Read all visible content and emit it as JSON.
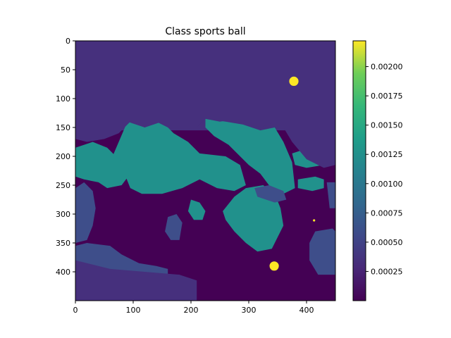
{
  "chart_data": {
    "type": "heatmap",
    "title": "Class sports ball",
    "xlabel": "",
    "ylabel": "",
    "x_ticks": [
      0,
      100,
      200,
      300,
      400
    ],
    "y_ticks": [
      0,
      50,
      100,
      150,
      200,
      250,
      300,
      350,
      400
    ],
    "x_range": [
      0,
      450
    ],
    "y_range": [
      0,
      450
    ],
    "y_inverted": true,
    "grid": false,
    "colormap": "viridis",
    "colorbar": {
      "range": [
        0.0,
        0.00222
      ],
      "ticks": [
        0.00025,
        0.0005,
        0.00075,
        0.001,
        0.00125,
        0.0015,
        0.00175,
        0.002
      ],
      "tick_labels": [
        "0.00025",
        "0.00050",
        "0.00075",
        "0.00100",
        "0.00125",
        "0.00150",
        "0.00175",
        "0.00200"
      ]
    },
    "levels": [
      {
        "level": "background",
        "value": 0.00018,
        "color": "#46307d"
      },
      {
        "level": "very-low",
        "value": 2e-05,
        "color": "#440154"
      },
      {
        "level": "low",
        "value": 0.00055,
        "color": "#3e4e8a"
      },
      {
        "level": "mid",
        "value": 0.0012,
        "color": "#21918c"
      },
      {
        "level": "peak",
        "value": 0.0022,
        "color": "#fde725"
      }
    ],
    "regions": [
      {
        "level": "very-low",
        "points": [
          [
            0,
            155
          ],
          [
            450,
            155
          ],
          [
            450,
            450
          ],
          [
            0,
            450
          ]
        ]
      },
      {
        "level": "mid",
        "points": [
          [
            60,
            210
          ],
          [
            90,
            140
          ],
          [
            120,
            150
          ],
          [
            150,
            140
          ],
          [
            170,
            160
          ],
          [
            195,
            175
          ],
          [
            215,
            195
          ],
          [
            260,
            200
          ],
          [
            285,
            215
          ],
          [
            295,
            250
          ],
          [
            275,
            260
          ],
          [
            245,
            255
          ],
          [
            215,
            240
          ],
          [
            185,
            255
          ],
          [
            150,
            265
          ],
          [
            115,
            265
          ],
          [
            95,
            255
          ],
          [
            85,
            230
          ],
          [
            70,
            225
          ]
        ]
      },
      {
        "level": "mid",
        "points": [
          [
            225,
            135
          ],
          [
            260,
            140
          ],
          [
            290,
            145
          ],
          [
            320,
            155
          ],
          [
            345,
            150
          ],
          [
            360,
            175
          ],
          [
            375,
            210
          ],
          [
            380,
            255
          ],
          [
            360,
            265
          ],
          [
            335,
            250
          ],
          [
            320,
            230
          ],
          [
            300,
            215
          ],
          [
            285,
            200
          ],
          [
            265,
            180
          ],
          [
            240,
            165
          ],
          [
            225,
            150
          ]
        ]
      },
      {
        "level": "mid",
        "points": [
          [
            0,
            185
          ],
          [
            30,
            175
          ],
          [
            55,
            185
          ],
          [
            70,
            200
          ],
          [
            90,
            215
          ],
          [
            95,
            230
          ],
          [
            80,
            250
          ],
          [
            55,
            255
          ],
          [
            40,
            245
          ],
          [
            15,
            240
          ],
          [
            0,
            235
          ]
        ]
      },
      {
        "level": "mid",
        "points": [
          [
            375,
            195
          ],
          [
            405,
            185
          ],
          [
            430,
            180
          ],
          [
            440,
            195
          ],
          [
            430,
            215
          ],
          [
            400,
            220
          ],
          [
            380,
            215
          ]
        ]
      },
      {
        "level": "mid",
        "points": [
          [
            385,
            240
          ],
          [
            415,
            235
          ],
          [
            430,
            240
          ],
          [
            430,
            255
          ],
          [
            410,
            260
          ],
          [
            385,
            255
          ]
        ]
      },
      {
        "level": "mid",
        "points": [
          [
            255,
            295
          ],
          [
            275,
            270
          ],
          [
            295,
            255
          ],
          [
            325,
            250
          ],
          [
            345,
            265
          ],
          [
            355,
            290
          ],
          [
            360,
            320
          ],
          [
            350,
            340
          ],
          [
            340,
            360
          ],
          [
            315,
            365
          ],
          [
            295,
            350
          ],
          [
            275,
            330
          ],
          [
            260,
            310
          ]
        ]
      },
      {
        "level": "mid",
        "points": [
          [
            200,
            275
          ],
          [
            215,
            280
          ],
          [
            225,
            295
          ],
          [
            220,
            310
          ],
          [
            205,
            310
          ],
          [
            195,
            295
          ]
        ]
      },
      {
        "level": "low",
        "points": [
          [
            0,
            255
          ],
          [
            15,
            245
          ],
          [
            30,
            260
          ],
          [
            35,
            290
          ],
          [
            30,
            320
          ],
          [
            20,
            345
          ],
          [
            0,
            350
          ]
        ]
      },
      {
        "level": "low",
        "points": [
          [
            415,
            330
          ],
          [
            445,
            325
          ],
          [
            450,
            330
          ],
          [
            450,
            405
          ],
          [
            420,
            405
          ],
          [
            405,
            380
          ],
          [
            405,
            350
          ]
        ]
      },
      {
        "level": "low",
        "points": [
          [
            160,
            305
          ],
          [
            175,
            300
          ],
          [
            185,
            315
          ],
          [
            180,
            345
          ],
          [
            165,
            345
          ],
          [
            155,
            330
          ]
        ]
      },
      {
        "level": "low",
        "points": [
          [
            0,
            355
          ],
          [
            20,
            350
          ],
          [
            60,
            355
          ],
          [
            80,
            370
          ],
          [
            110,
            385
          ],
          [
            140,
            390
          ],
          [
            160,
            395
          ],
          [
            160,
            450
          ],
          [
            0,
            450
          ]
        ]
      },
      {
        "level": "low",
        "points": [
          [
            310,
            255
          ],
          [
            335,
            250
          ],
          [
            360,
            260
          ],
          [
            365,
            275
          ],
          [
            345,
            280
          ],
          [
            315,
            270
          ]
        ]
      },
      {
        "level": "low",
        "points": [
          [
            435,
            245
          ],
          [
            450,
            245
          ],
          [
            450,
            290
          ],
          [
            440,
            290
          ]
        ]
      },
      {
        "level": "background",
        "points": [
          [
            0,
            0
          ],
          [
            450,
            0
          ],
          [
            450,
            215
          ],
          [
            430,
            220
          ],
          [
            400,
            205
          ],
          [
            375,
            175
          ],
          [
            360,
            150
          ],
          [
            345,
            140
          ],
          [
            320,
            150
          ],
          [
            300,
            140
          ],
          [
            280,
            135
          ],
          [
            250,
            140
          ],
          [
            225,
            135
          ],
          [
            210,
            150
          ],
          [
            180,
            150
          ],
          [
            160,
            150
          ],
          [
            140,
            140
          ],
          [
            120,
            150
          ],
          [
            95,
            140
          ],
          [
            75,
            160
          ],
          [
            50,
            170
          ],
          [
            20,
            175
          ],
          [
            0,
            170
          ]
        ]
      },
      {
        "level": "background",
        "points": [
          [
            0,
            380
          ],
          [
            60,
            395
          ],
          [
            120,
            400
          ],
          [
            180,
            405
          ],
          [
            210,
            415
          ],
          [
            210,
            450
          ],
          [
            0,
            450
          ]
        ]
      }
    ],
    "peaks": [
      {
        "x": 378,
        "y": 70,
        "r": 8,
        "level": "peak"
      },
      {
        "x": 344,
        "y": 390,
        "r": 8,
        "level": "peak"
      },
      {
        "x": 413,
        "y": 311,
        "r": 2,
        "level": "peak"
      }
    ]
  }
}
